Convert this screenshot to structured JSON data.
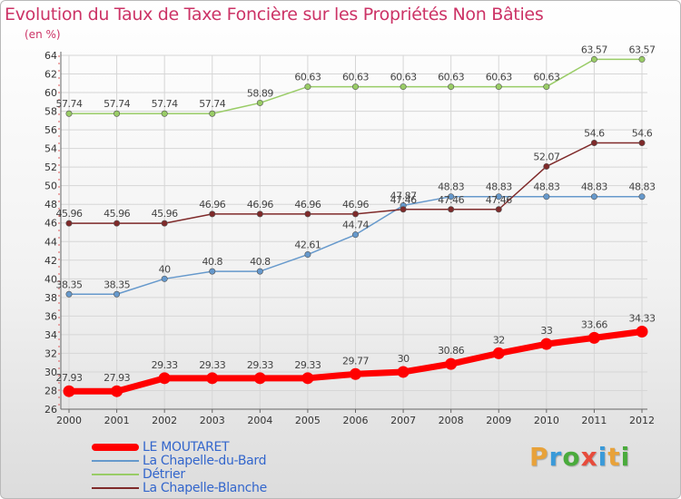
{
  "title": "Evolution du Taux de Taxe Foncière sur les Propriétés Non Bâties",
  "unit_label": "(en %)",
  "logo": {
    "letters": [
      {
        "char": "P",
        "color": "#e8a23a"
      },
      {
        "char": "r",
        "color": "#3a9ad9"
      },
      {
        "char": "o",
        "color": "#4aab3c"
      },
      {
        "char": "x",
        "color": "#e74c3c"
      },
      {
        "char": "i",
        "color": "#3a9ad9"
      },
      {
        "char": "t",
        "color": "#e8a23a"
      },
      {
        "char": "i",
        "color": "#4aab3c"
      }
    ]
  },
  "chart_data": {
    "type": "line",
    "x": [
      "2000",
      "2001",
      "2002",
      "2003",
      "2004",
      "2005",
      "2006",
      "2007",
      "2008",
      "2009",
      "2010",
      "2011",
      "2012"
    ],
    "ylim": [
      26,
      64
    ],
    "yticks": [
      "26",
      "28",
      "30",
      "32",
      "34",
      "36",
      "38",
      "40",
      "42",
      "44",
      "46",
      "48",
      "50",
      "52",
      "54",
      "56",
      "58",
      "60",
      "62",
      "64"
    ],
    "grid": true,
    "legend_position": "bottom-left",
    "series": [
      {
        "name": "LE MOUTARET",
        "color": "#ff0000",
        "values": [
          27.93,
          27.93,
          29.33,
          29.33,
          29.33,
          29.33,
          29.77,
          30,
          30.86,
          32,
          33,
          33.66,
          34.33
        ],
        "labels": [
          "27.93",
          "27.93",
          "29.33",
          "29.33",
          "29.33",
          "29.33",
          "29.77",
          "30",
          "30.86",
          "32",
          "33",
          "33.66",
          "34.33"
        ]
      },
      {
        "name": "La Chapelle-du-Bard",
        "color": "#6699cc",
        "values": [
          38.35,
          38.35,
          40,
          40.8,
          40.8,
          42.61,
          44.74,
          47.87,
          48.83,
          48.83,
          48.83,
          48.83,
          48.83
        ],
        "labels": [
          "38.35",
          "38.35",
          "40",
          "40.8",
          "40.8",
          "42.61",
          "44.74",
          "47.87",
          "48.83",
          "48.83",
          "48.83",
          "48.83",
          "48.83"
        ]
      },
      {
        "name": "Détrier",
        "color": "#99cc66",
        "values": [
          57.74,
          57.74,
          57.74,
          57.74,
          58.89,
          60.63,
          60.63,
          60.63,
          60.63,
          60.63,
          60.63,
          63.57,
          63.57
        ],
        "labels": [
          "57.74",
          "57.74",
          "57.74",
          "57.74",
          "58.89",
          "60.63",
          "60.63",
          "60.63",
          "60.63",
          "60.63",
          "60.63",
          "63.57",
          "63.57"
        ]
      },
      {
        "name": "La Chapelle-Blanche",
        "color": "#7f2a2a",
        "values": [
          45.96,
          45.96,
          45.96,
          46.96,
          46.96,
          46.96,
          46.96,
          47.46,
          47.46,
          47.46,
          52.07,
          54.6,
          54.6
        ],
        "labels": [
          "45.96",
          "45.96",
          "45.96",
          "46.96",
          "46.96",
          "46.96",
          "46.96",
          "47.46",
          "47.46",
          "47.46",
          "52.07",
          "54.6",
          "54.6"
        ]
      }
    ]
  }
}
